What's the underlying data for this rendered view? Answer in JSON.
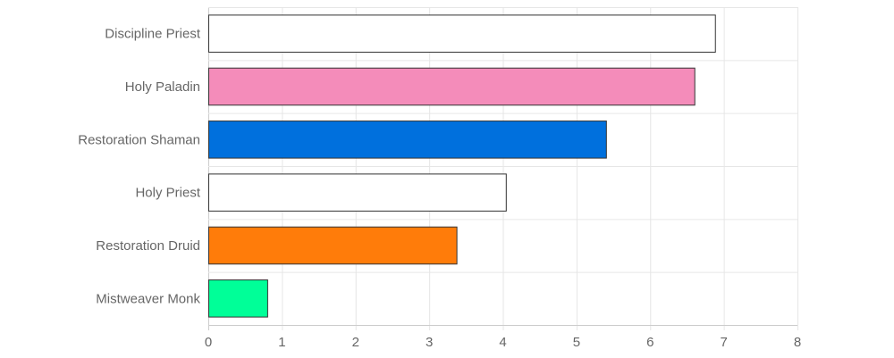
{
  "chart_data": {
    "type": "bar",
    "orientation": "horizontal",
    "title": "",
    "xlabel": "",
    "ylabel": "",
    "categories": [
      "Discipline Priest",
      "Holy Paladin",
      "Restoration Shaman",
      "Holy Priest",
      "Restoration Druid",
      "Mistweaver Monk"
    ],
    "values": [
      6.88,
      6.6,
      5.4,
      4.04,
      3.37,
      0.8
    ],
    "colors": [
      "#ffffff",
      "#f48cba",
      "#0070dd",
      "#ffffff",
      "#ff7c0a",
      "#00ff98"
    ],
    "xlim": [
      0,
      8
    ],
    "xticks": [
      "0",
      "1",
      "2",
      "3",
      "4",
      "5",
      "6",
      "7",
      "8"
    ],
    "grid": true,
    "legend": "none"
  }
}
